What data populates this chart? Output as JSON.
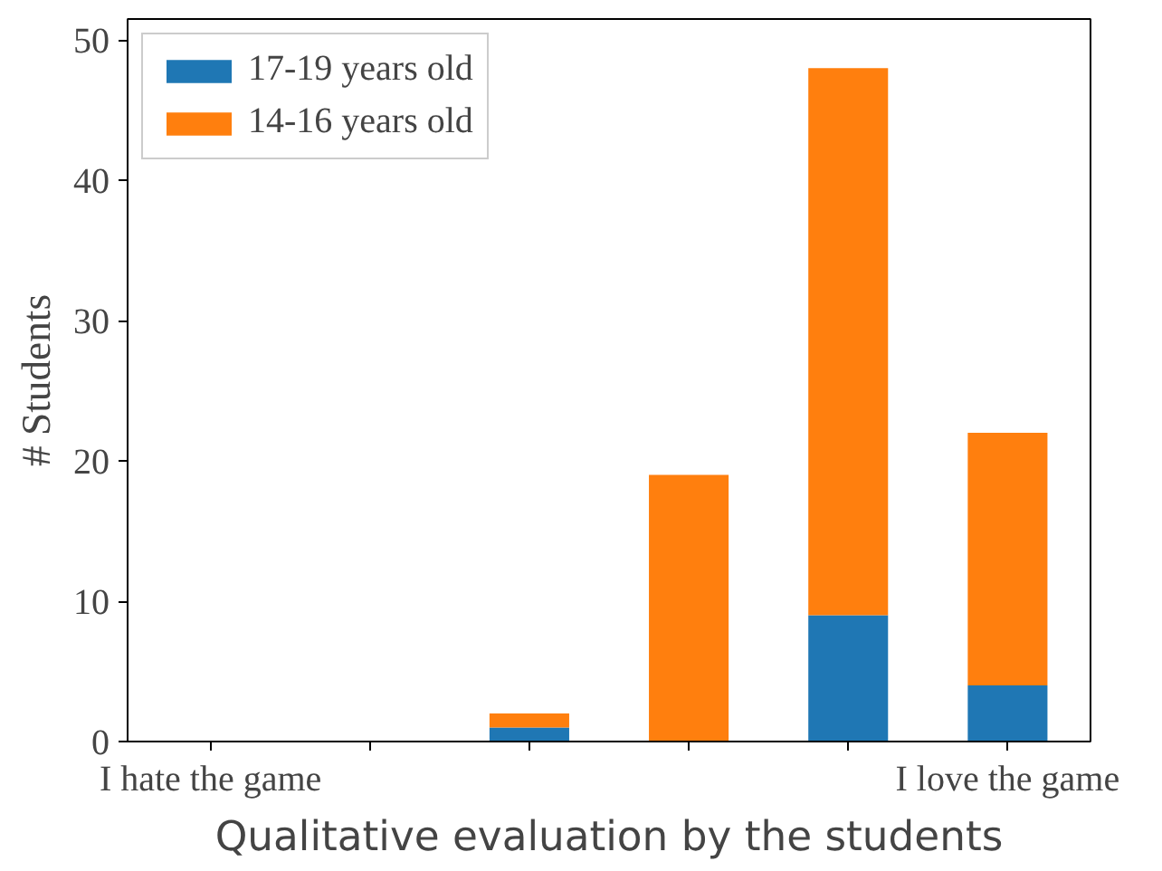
{
  "chart_data": {
    "type": "bar",
    "stacked": true,
    "xlabel": "Qualitative evaluation by the students",
    "ylabel": "# Students",
    "categories": [
      "I hate the game",
      null,
      null,
      null,
      null,
      "I love the game"
    ],
    "series": [
      {
        "name": "17-19 years old",
        "color": "#1f77b4",
        "values": [
          0,
          0,
          1,
          0,
          9,
          4
        ]
      },
      {
        "name": "14-16 years old",
        "color": "#ff7f0e",
        "values": [
          0,
          0,
          1,
          19,
          39,
          18
        ]
      }
    ],
    "ylim": [
      0,
      51.5
    ],
    "yticks": [
      0,
      10,
      20,
      30,
      40,
      50
    ],
    "grid": false,
    "legend": "top left"
  }
}
